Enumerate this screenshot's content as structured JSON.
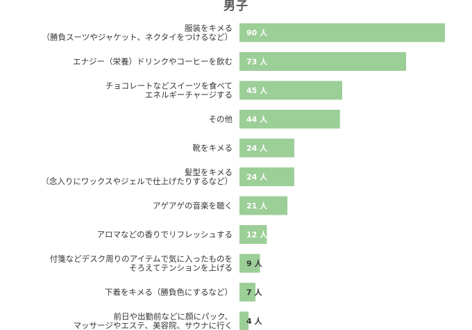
{
  "chart_data": {
    "type": "bar",
    "orientation": "horizontal",
    "title": "男子",
    "unit": "人",
    "bar_color": "#9cce98",
    "label_inside_color": "#ffffff",
    "label_outside_color": "#333333",
    "xlim": [
      0,
      90
    ],
    "grid": false,
    "categories": [
      [
        "服装をキメる",
        "（勝負スーツやジャケット、ネクタイをつけるなど）"
      ],
      [
        "エナジー（栄養）ドリンクやコーヒーを飲む"
      ],
      [
        "チョコレートなどスイーツを食べて",
        "エネルギーチャージする"
      ],
      [
        "その他"
      ],
      [
        "靴をキメる"
      ],
      [
        "髪型をキメる",
        "（念入りにワックスやジェルで仕上げたりするなど）"
      ],
      [
        "アゲアゲの音楽を聴く"
      ],
      [
        "アロマなどの香りでリフレッシュする"
      ],
      [
        "付箋などデスク周りのアイテムで気に入ったものを",
        "そろえてテンションを上げる"
      ],
      [
        "下着をキメる（勝負色にするなど）"
      ],
      [
        "前日や出勤前などに顔にパック、",
        "マッサージやエステ、美容院、サウナに行く"
      ]
    ],
    "values": [
      90,
      73,
      45,
      44,
      24,
      24,
      21,
      12,
      9,
      7,
      4
    ],
    "value_labels": [
      "90 人",
      "73 人",
      "45 人",
      "44 人",
      "24 人",
      "24 人",
      "21 人",
      "12 人",
      "9 人",
      "7 人",
      "4 人"
    ]
  }
}
